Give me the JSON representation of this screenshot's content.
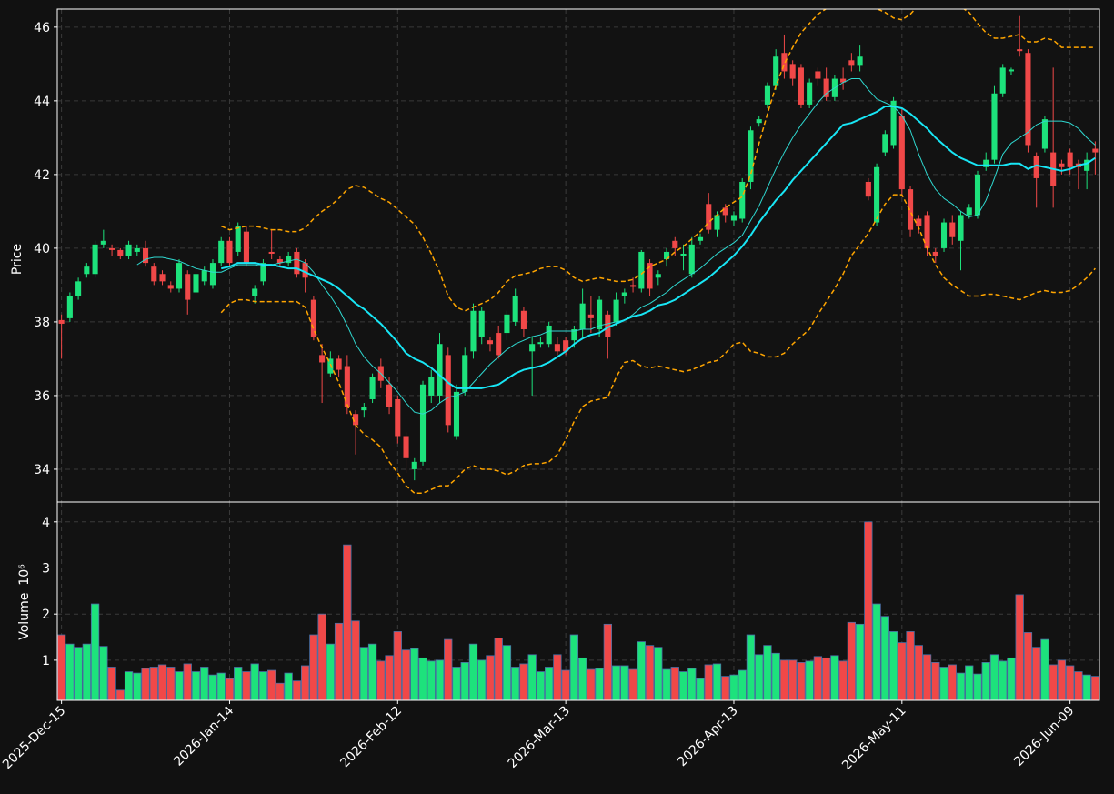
{
  "chart_data": [
    {
      "type": "candlestick",
      "ylabel": "Price",
      "ylim": [
        33.11,
        46.49
      ],
      "yticks": [
        34,
        36,
        38,
        40,
        42,
        44,
        46
      ],
      "xlim": [
        -0.5,
        123.5
      ],
      "grid": true,
      "up_color": "#1de27c",
      "down_color": "#f04848",
      "open": [
        38.05,
        38.1,
        38.7,
        39.3,
        39.3,
        40.1,
        40.0,
        39.95,
        39.8,
        39.9,
        40.0,
        39.5,
        39.3,
        39.0,
        38.9,
        39.3,
        38.8,
        39.1,
        39.0,
        39.6,
        40.2,
        39.9,
        40.45,
        38.7,
        39.1,
        39.9,
        39.7,
        39.6,
        39.9,
        39.6,
        38.6,
        37.1,
        36.6,
        37.0,
        36.8,
        35.5,
        35.6,
        35.9,
        36.8,
        36.3,
        35.9,
        34.9,
        34.0,
        34.2,
        36.0,
        36.0,
        37.1,
        34.9,
        36.1,
        37.2,
        37.6,
        37.5,
        37.7,
        37.7,
        38.0,
        38.3,
        37.2,
        37.4,
        37.4,
        37.4,
        37.5,
        37.5,
        37.8,
        38.2,
        37.8,
        38.2,
        38.0,
        38.7,
        39.0,
        38.9,
        39.6,
        39.2,
        39.7,
        40.2,
        39.8,
        39.3,
        40.2,
        41.2,
        40.5,
        41.1,
        40.75,
        40.8,
        41.8,
        43.4,
        43.9,
        44.4,
        45.3,
        45.0,
        44.9,
        43.9,
        44.8,
        44.6,
        44.1,
        44.6,
        45.1,
        44.95,
        41.8,
        40.7,
        42.6,
        42.8,
        43.6,
        41.6,
        40.8,
        40.9,
        39.9,
        40.0,
        40.7,
        40.2,
        40.9,
        40.9,
        42.2,
        42.4,
        44.2,
        44.8,
        45.4,
        45.3,
        42.5,
        42.7,
        42.6,
        42.3,
        42.6,
        42.3,
        42.1,
        42.7
      ],
      "high": [
        38.2,
        38.8,
        39.2,
        39.6,
        40.2,
        40.5,
        40.1,
        40.0,
        40.2,
        40.1,
        40.2,
        39.6,
        39.4,
        39.1,
        39.7,
        39.4,
        39.4,
        39.5,
        39.7,
        40.3,
        40.3,
        40.7,
        40.6,
        39.0,
        39.7,
        40.5,
        39.8,
        39.9,
        40.0,
        39.7,
        38.7,
        37.4,
        37.2,
        37.1,
        37.1,
        35.6,
        35.8,
        36.6,
        37.0,
        36.5,
        36.0,
        35.0,
        34.3,
        36.4,
        36.7,
        37.7,
        37.3,
        36.3,
        37.3,
        38.5,
        38.4,
        37.6,
        37.9,
        38.3,
        38.9,
        38.4,
        37.6,
        37.6,
        38.0,
        37.6,
        37.6,
        37.9,
        38.9,
        38.7,
        38.7,
        38.3,
        38.8,
        38.9,
        39.2,
        39.95,
        39.7,
        39.4,
        40.0,
        40.3,
        40.1,
        40.3,
        40.4,
        41.5,
        41.0,
        41.2,
        41.0,
        41.9,
        43.3,
        43.6,
        44.5,
        45.4,
        45.8,
        45.1,
        45.0,
        44.6,
        44.9,
        44.9,
        44.7,
        44.9,
        45.3,
        45.5,
        41.9,
        42.3,
        43.2,
        44.1,
        43.8,
        41.7,
        40.9,
        41.0,
        40.0,
        40.8,
        40.9,
        41.0,
        41.2,
        42.1,
        42.6,
        44.4,
        45.0,
        44.9,
        46.3,
        45.4,
        42.6,
        43.6,
        44.9,
        42.4,
        42.7,
        42.4,
        42.6,
        42.9
      ],
      "low": [
        37.0,
        38.0,
        38.6,
        39.2,
        39.2,
        40.0,
        39.8,
        39.7,
        39.7,
        39.8,
        39.5,
        39.0,
        39.0,
        38.8,
        38.8,
        38.2,
        38.3,
        39.0,
        38.9,
        39.5,
        39.5,
        39.8,
        39.5,
        38.5,
        39.0,
        39.7,
        39.5,
        39.5,
        39.2,
        38.8,
        37.5,
        35.8,
        36.5,
        36.5,
        35.5,
        34.4,
        35.4,
        35.8,
        36.2,
        35.5,
        34.7,
        33.9,
        33.7,
        34.1,
        35.8,
        35.8,
        35.0,
        34.8,
        36.0,
        37.0,
        37.4,
        37.2,
        37.0,
        37.5,
        37.9,
        37.6,
        36.0,
        37.3,
        37.3,
        37.1,
        37.1,
        37.3,
        37.6,
        37.7,
        37.6,
        37.0,
        37.9,
        38.5,
        38.8,
        38.8,
        38.7,
        39.0,
        39.5,
        39.8,
        39.4,
        39.2,
        40.1,
        40.4,
        40.3,
        40.7,
        40.6,
        40.7,
        41.6,
        43.3,
        43.8,
        44.3,
        44.6,
        44.4,
        43.8,
        43.8,
        44.4,
        44.0,
        44.0,
        44.3,
        44.8,
        44.8,
        41.3,
        40.6,
        42.5,
        42.7,
        41.4,
        40.3,
        40.4,
        39.8,
        39.6,
        39.9,
        40.1,
        39.4,
        40.8,
        40.8,
        42.1,
        42.3,
        44.1,
        44.7,
        45.2,
        42.6,
        41.1,
        42.6,
        41.1,
        42.0,
        42.0,
        41.6,
        41.6,
        42.0
      ],
      "close": [
        37.95,
        38.7,
        39.1,
        39.5,
        40.1,
        40.2,
        39.95,
        39.8,
        40.1,
        40.0,
        39.6,
        39.1,
        39.1,
        38.9,
        39.6,
        38.6,
        39.3,
        39.4,
        39.6,
        40.2,
        39.6,
        40.6,
        39.6,
        38.9,
        39.6,
        39.85,
        39.6,
        39.8,
        39.3,
        39.2,
        37.6,
        36.9,
        37.0,
        36.7,
        35.7,
        35.2,
        35.7,
        36.5,
        36.4,
        35.7,
        34.9,
        34.3,
        34.2,
        36.3,
        36.5,
        37.4,
        35.2,
        36.1,
        37.1,
        38.3,
        38.3,
        37.4,
        37.1,
        38.2,
        38.7,
        37.8,
        37.4,
        37.45,
        37.9,
        37.2,
        37.2,
        37.8,
        38.5,
        38.1,
        38.6,
        37.6,
        38.6,
        38.8,
        38.95,
        39.9,
        38.9,
        39.3,
        39.9,
        40.0,
        39.85,
        40.1,
        40.3,
        40.5,
        40.9,
        40.9,
        40.9,
        41.8,
        43.2,
        43.5,
        44.4,
        45.2,
        44.8,
        44.6,
        43.9,
        44.5,
        44.6,
        44.1,
        44.6,
        44.5,
        44.95,
        45.2,
        41.4,
        42.2,
        43.1,
        44.0,
        41.6,
        40.5,
        40.6,
        40.0,
        39.8,
        40.7,
        40.3,
        40.9,
        41.1,
        42.0,
        42.4,
        44.2,
        44.9,
        44.85,
        45.35,
        42.8,
        41.9,
        43.5,
        41.7,
        42.2,
        42.2,
        42.2,
        42.4,
        42.6
      ],
      "series": [
        {
          "color": "#2fd8d0",
          "width": 1,
          "values": [
            null,
            null,
            null,
            null,
            null,
            null,
            null,
            null,
            null,
            39.55,
            39.7,
            39.75,
            39.75,
            39.7,
            39.65,
            39.55,
            39.45,
            39.4,
            39.35,
            39.35,
            39.45,
            39.55,
            39.55,
            39.55,
            39.5,
            39.55,
            39.6,
            39.65,
            39.7,
            39.6,
            39.35,
            39.0,
            38.7,
            38.35,
            37.9,
            37.4,
            37.05,
            36.8,
            36.6,
            36.35,
            36.1,
            35.8,
            35.55,
            35.5,
            35.6,
            35.8,
            35.95,
            36.0,
            36.1,
            36.35,
            36.6,
            36.85,
            37.05,
            37.25,
            37.4,
            37.5,
            37.6,
            37.65,
            37.75,
            37.75,
            37.75,
            37.75,
            37.8,
            37.8,
            37.9,
            37.95,
            38.0,
            38.05,
            38.2,
            38.4,
            38.5,
            38.65,
            38.8,
            39.0,
            39.15,
            39.3,
            39.45,
            39.65,
            39.85,
            40.0,
            40.15,
            40.35,
            40.75,
            41.15,
            41.65,
            42.15,
            42.6,
            43.0,
            43.35,
            43.65,
            43.95,
            44.2,
            44.35,
            44.5,
            44.6,
            44.6,
            44.3,
            44.05,
            43.95,
            43.85,
            43.6,
            43.2,
            42.55,
            42.0,
            41.6,
            41.35,
            41.2,
            41.0,
            40.85,
            40.9,
            41.3,
            41.9,
            42.55,
            42.85,
            43.0,
            43.15,
            43.35,
            43.45,
            43.45,
            43.45,
            43.4,
            43.25,
            43.0,
            42.8
          ]
        },
        {
          "color": "#18e6f5",
          "width": 2,
          "values": [
            null,
            null,
            null,
            null,
            null,
            null,
            null,
            null,
            null,
            null,
            null,
            null,
            null,
            null,
            null,
            null,
            null,
            null,
            null,
            39.45,
            39.5,
            39.6,
            39.6,
            39.6,
            39.55,
            39.55,
            39.5,
            39.45,
            39.45,
            39.35,
            39.25,
            39.15,
            39.05,
            38.9,
            38.7,
            38.5,
            38.35,
            38.15,
            37.95,
            37.7,
            37.45,
            37.15,
            37.0,
            36.9,
            36.75,
            36.55,
            36.35,
            36.2,
            36.2,
            36.2,
            36.2,
            36.25,
            36.3,
            36.45,
            36.6,
            36.7,
            36.75,
            36.8,
            36.9,
            37.05,
            37.2,
            37.4,
            37.55,
            37.65,
            37.7,
            37.85,
            37.95,
            38.05,
            38.15,
            38.2,
            38.3,
            38.45,
            38.5,
            38.6,
            38.75,
            38.9,
            39.05,
            39.2,
            39.4,
            39.6,
            39.8,
            40.05,
            40.35,
            40.7,
            41.0,
            41.3,
            41.55,
            41.85,
            42.1,
            42.35,
            42.6,
            42.85,
            43.1,
            43.35,
            43.4,
            43.5,
            43.6,
            43.7,
            43.85,
            43.85,
            43.8,
            43.65,
            43.45,
            43.25,
            43.0,
            42.8,
            42.6,
            42.45,
            42.35,
            42.25,
            42.25,
            42.25,
            42.25,
            42.3,
            42.3,
            42.15,
            42.25,
            42.2,
            42.15,
            42.1,
            42.15,
            42.25,
            42.3,
            42.45
          ]
        },
        {
          "color": "#ffa500",
          "width": 1.5,
          "dashed": true,
          "values": [
            null,
            null,
            null,
            null,
            null,
            null,
            null,
            null,
            null,
            null,
            null,
            null,
            null,
            null,
            null,
            null,
            null,
            null,
            null,
            40.6,
            40.5,
            40.55,
            40.6,
            40.6,
            40.55,
            40.5,
            40.5,
            40.45,
            40.45,
            40.55,
            40.8,
            41.0,
            41.15,
            41.35,
            41.6,
            41.7,
            41.65,
            41.5,
            41.35,
            41.25,
            41.05,
            40.85,
            40.65,
            40.3,
            39.85,
            39.35,
            38.7,
            38.4,
            38.3,
            38.4,
            38.5,
            38.6,
            38.8,
            39.1,
            39.25,
            39.3,
            39.35,
            39.45,
            39.5,
            39.5,
            39.4,
            39.2,
            39.1,
            39.15,
            39.2,
            39.15,
            39.1,
            39.1,
            39.15,
            39.3,
            39.5,
            39.6,
            39.7,
            39.9,
            40.05,
            40.25,
            40.45,
            40.7,
            40.9,
            41.1,
            41.25,
            41.4,
            42.0,
            42.85,
            43.65,
            44.4,
            45.0,
            45.45,
            45.85,
            46.1,
            46.35,
            46.5,
            46.6,
            46.65,
            46.7,
            46.7,
            46.6,
            46.5,
            46.4,
            46.25,
            46.2,
            46.35,
            46.6,
            46.7,
            46.7,
            46.7,
            46.6,
            46.55,
            46.4,
            46.1,
            45.85,
            45.7,
            45.7,
            45.75,
            45.8,
            45.6,
            45.6,
            45.7,
            45.65,
            45.45,
            45.45,
            45.45,
            45.45,
            45.45
          ]
        },
        {
          "color": "#ffa500",
          "width": 1.5,
          "dashed": true,
          "values": [
            null,
            null,
            null,
            null,
            null,
            null,
            null,
            null,
            null,
            null,
            null,
            null,
            null,
            null,
            null,
            null,
            null,
            null,
            null,
            38.25,
            38.5,
            38.6,
            38.6,
            38.55,
            38.55,
            38.55,
            38.55,
            38.55,
            38.55,
            38.4,
            37.8,
            37.3,
            36.85,
            36.35,
            35.75,
            35.2,
            34.95,
            34.8,
            34.6,
            34.2,
            33.9,
            33.55,
            33.35,
            33.35,
            33.45,
            33.55,
            33.55,
            33.75,
            34.0,
            34.1,
            34.0,
            34.0,
            33.95,
            33.85,
            33.95,
            34.1,
            34.15,
            34.15,
            34.2,
            34.4,
            34.8,
            35.3,
            35.7,
            35.85,
            35.9,
            35.95,
            36.5,
            36.9,
            36.95,
            36.8,
            36.75,
            36.8,
            36.75,
            36.7,
            36.65,
            36.7,
            36.8,
            36.9,
            36.95,
            37.15,
            37.4,
            37.45,
            37.2,
            37.15,
            37.05,
            37.05,
            37.15,
            37.4,
            37.6,
            37.8,
            38.2,
            38.55,
            38.9,
            39.3,
            39.8,
            40.1,
            40.4,
            40.8,
            41.2,
            41.45,
            41.45,
            41.0,
            40.55,
            40.0,
            39.55,
            39.2,
            39.0,
            38.85,
            38.7,
            38.7,
            38.75,
            38.75,
            38.7,
            38.65,
            38.6,
            38.7,
            38.8,
            38.85,
            38.8,
            38.8,
            38.85,
            39.0,
            39.2,
            39.45
          ]
        }
      ]
    },
    {
      "type": "bar",
      "ylabel": "Volume",
      "offset_label": "10⁶",
      "ylim": [
        0.13,
        4.43
      ],
      "yticks": [
        1,
        2,
        3,
        4
      ],
      "xlim": [
        -0.5,
        123.5
      ],
      "grid": true,
      "edge_color": "#4a6fa5",
      "xticks": [
        {
          "value": 0,
          "label": "2025-Dec-15"
        },
        {
          "value": 20,
          "label": "2026-Jan-14"
        },
        {
          "value": 40,
          "label": "2026-Feb-12"
        },
        {
          "value": 60,
          "label": "2026-Mar-13"
        },
        {
          "value": 80,
          "label": "2026-Apr-13"
        },
        {
          "value": 100,
          "label": "2026-May-11"
        },
        {
          "value": 120,
          "label": "2026-Jun-09"
        }
      ],
      "values": [
        1.55,
        1.35,
        1.28,
        1.35,
        2.22,
        1.3,
        0.85,
        0.35,
        0.75,
        0.72,
        0.82,
        0.85,
        0.9,
        0.85,
        0.75,
        0.92,
        0.75,
        0.85,
        0.68,
        0.72,
        0.6,
        0.85,
        0.75,
        0.92,
        0.75,
        0.78,
        0.5,
        0.72,
        0.55,
        0.88,
        1.55,
        2.0,
        1.35,
        1.8,
        3.5,
        1.85,
        1.28,
        1.35,
        0.98,
        1.1,
        1.62,
        1.22,
        1.25,
        1.05,
        0.98,
        1.0,
        1.45,
        0.85,
        0.95,
        1.35,
        1.0,
        1.1,
        1.48,
        1.32,
        0.85,
        0.92,
        1.12,
        0.75,
        0.85,
        1.12,
        0.78,
        1.55,
        1.05,
        0.8,
        0.82,
        1.78,
        0.88,
        0.88,
        0.8,
        1.4,
        1.32,
        1.28,
        0.8,
        0.85,
        0.75,
        0.82,
        0.6,
        0.9,
        0.92,
        0.65,
        0.68,
        0.78,
        1.55,
        1.12,
        1.32,
        1.15,
        1.0,
        1.0,
        0.95,
        0.98,
        1.08,
        1.05,
        1.1,
        0.98,
        1.82,
        1.78,
        4.0,
        2.22,
        1.95,
        1.62,
        1.38,
        1.62,
        1.32,
        1.12,
        0.95,
        0.85,
        0.9,
        0.72,
        0.88,
        0.7,
        0.95,
        1.12,
        0.98,
        1.05,
        2.42,
        1.6,
        1.28,
        1.45,
        0.9,
        1.0,
        0.88,
        0.75,
        0.68,
        0.65
      ]
    }
  ]
}
